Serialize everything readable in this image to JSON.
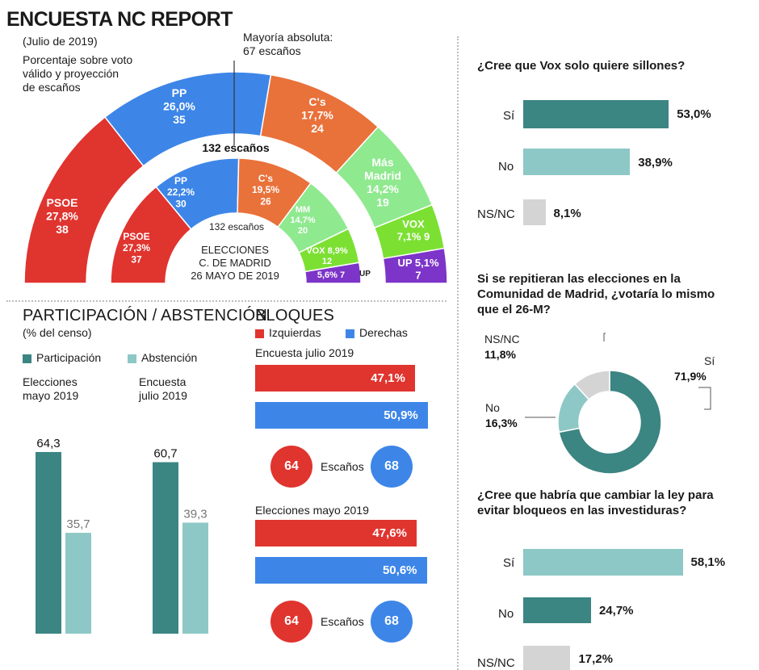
{
  "header": {
    "title": "ENCUESTA NC REPORT",
    "date": "(Julio de 2019)",
    "desc1": "Porcentaje sobre voto",
    "desc2": "válido y proyección",
    "desc3": "de escaños",
    "majority1": "Mayoría absoluta:",
    "majority2": "67 escaños"
  },
  "colors": {
    "PSOE": "#e0342f",
    "PP": "#3d86e8",
    "Cs": "#e9713a",
    "MasMadrid": "#8fe98f",
    "VOX": "#7ce033",
    "UP": "#7d34c8",
    "participacion": "#3b8582",
    "abstencion": "#8dc8c6",
    "izq": "#e0342f",
    "der": "#3d86e8",
    "nsnc": "#d4d4d4"
  },
  "chart_data": [
    {
      "type": "hemicycle",
      "title": "132 escaños",
      "series": [
        {
          "name": "ENCUESTA NC REPORT (Julio de 2019)",
          "label": "132 escaños",
          "parties": [
            {
              "party": "PSOE",
              "pct": 27.8,
              "pct_text": "27,8%",
              "seats": 38
            },
            {
              "party": "PP",
              "pct": 26.0,
              "pct_text": "26,0%",
              "seats": 35
            },
            {
              "party": "C's",
              "pct": 17.7,
              "pct_text": "17,7%",
              "seats": 24
            },
            {
              "party": "Más Madrid",
              "pct": 14.2,
              "pct_text": "14,2%",
              "seats": 19
            },
            {
              "party": "VOX",
              "pct": 7.1,
              "pct_text": "7,1%",
              "seats": 9
            },
            {
              "party": "UP",
              "pct": 5.1,
              "pct_text": "5,1%",
              "seats": 7
            }
          ]
        },
        {
          "name": "ELECCIONES C. DE MADRID 26 MAYO DE 2019",
          "label": "132 escaños",
          "parties": [
            {
              "party": "PSOE",
              "pct": 27.3,
              "pct_text": "27,3%",
              "seats": 37
            },
            {
              "party": "PP",
              "pct": 22.2,
              "pct_text": "22,2%",
              "seats": 30
            },
            {
              "party": "C's",
              "pct": 19.5,
              "pct_text": "19,5%",
              "seats": 26
            },
            {
              "party": "MM",
              "pct": 14.7,
              "pct_text": "14,7%",
              "seats": 20
            },
            {
              "party": "VOX",
              "pct": 8.9,
              "pct_text": "8,9%",
              "seats": 12
            },
            {
              "party": "UP",
              "pct": 5.6,
              "pct_text": "5,6%",
              "seats": 7
            }
          ]
        }
      ]
    },
    {
      "type": "bar",
      "title": "PARTICIPACIÓN / ABSTENCIÓN",
      "subtitle": "(% del censo)",
      "categories": [
        "Elecciones mayo 2019",
        "Encuesta julio 2019"
      ],
      "series": [
        {
          "name": "Participación",
          "values": [
            64.3,
            60.7
          ],
          "labels": [
            "64,3",
            "60,7"
          ]
        },
        {
          "name": "Abstención",
          "values": [
            35.7,
            39.3
          ],
          "labels": [
            "35,7",
            "39,3"
          ]
        }
      ],
      "ylim": [
        0,
        100
      ]
    },
    {
      "type": "bar",
      "title": "BLOQUES",
      "legend": [
        "Izquierdas",
        "Derechas"
      ],
      "groups": [
        {
          "name": "Encuesta julio 2019",
          "izquierdas": 47.1,
          "izq_text": "47,1%",
          "derechas": 50.9,
          "der_text": "50,9%",
          "seats_izq": 64,
          "seats_der": 68
        },
        {
          "name": "Elecciones mayo 2019",
          "izquierdas": 47.6,
          "izq_text": "47,6%",
          "derechas": 50.6,
          "der_text": "50,6%",
          "seats_izq": 64,
          "seats_der": 68
        }
      ],
      "seats_label": "Escaños"
    },
    {
      "type": "bar",
      "title": "¿Cree que Vox solo quiere sillones?",
      "categories": [
        "Sí",
        "No",
        "NS/NC"
      ],
      "values": [
        53.0,
        38.9,
        8.1
      ],
      "labels": [
        "53,0%",
        "38,9%",
        "8,1%"
      ]
    },
    {
      "type": "pie",
      "title": "Si se repitieran las elecciones en la Comunidad de Madrid, ¿votaría lo mismo que el 26-M?",
      "categories": [
        "Sí",
        "No",
        "NS/NC"
      ],
      "values": [
        71.9,
        16.3,
        11.8
      ],
      "labels": [
        "71,9%",
        "16,3%",
        "11,8%"
      ]
    },
    {
      "type": "bar",
      "title": "¿Cree que habría que cambiar la ley para evitar bloqueos en las investiduras?",
      "categories": [
        "Sí",
        "No",
        "NS/NC"
      ],
      "values": [
        58.1,
        24.7,
        17.2
      ],
      "labels": [
        "58,1%",
        "24,7%",
        "17,2%"
      ]
    }
  ],
  "text": {
    "inner_center1": "ELECCIONES",
    "inner_center2": "C. DE MADRID",
    "inner_center3": "26 MAYO DE 2019",
    "outer_seats": "132 escaños",
    "inner_seats": "132 escaños",
    "part_title": "PARTICIPACIÓN / ABSTENCIÓN",
    "part_sub": "(% del censo)",
    "legend_part": "Participación",
    "legend_abs": "Abstención",
    "cat1a": "Elecciones",
    "cat1b": "mayo 2019",
    "cat2a": "Encuesta",
    "cat2b": "julio 2019",
    "bloques": "BLOQUES",
    "izq": "Izquierdas",
    "der": "Derechas",
    "g1": "Encuesta julio 2019",
    "g2": "Elecciones mayo 2019",
    "escanos": "Escaños",
    "q1": "¿Cree que Vox solo quiere sillones?",
    "q2a": "Si se repitieran las elecciones en la",
    "q2b": "Comunidad de Madrid, ¿votaría lo mismo",
    "q2c": "que el 26-M?",
    "q3a": "¿Cree que habría que cambiar la ley para",
    "q3b": "evitar bloqueos en las investiduras?",
    "si": "Sí",
    "no": "No",
    "nsnc": "NS/NC"
  }
}
